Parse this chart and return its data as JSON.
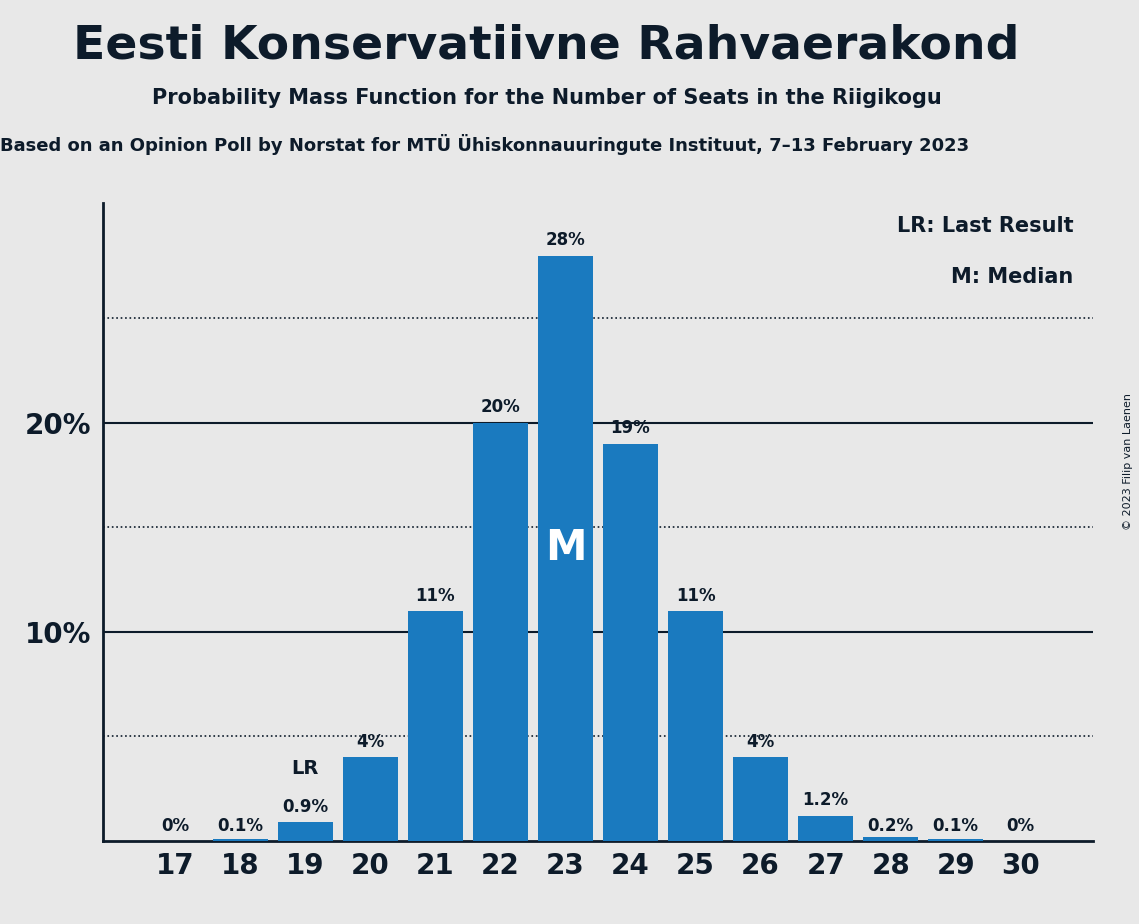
{
  "title": "Eesti Konservatiivne Rahvaerakond",
  "subtitle": "Probability Mass Function for the Number of Seats in the Riigikogu",
  "subsubtitle": "Based on an Opinion Poll by Norstat for MTÜ Ühiskonnauuringute Instituut, 7–13 February 2023",
  "copyright": "© 2023 Filip van Laenen",
  "seats": [
    17,
    18,
    19,
    20,
    21,
    22,
    23,
    24,
    25,
    26,
    27,
    28,
    29,
    30
  ],
  "probabilities": [
    0.0,
    0.001,
    0.009,
    0.04,
    0.11,
    0.2,
    0.28,
    0.19,
    0.11,
    0.04,
    0.012,
    0.002,
    0.001,
    0.0
  ],
  "bar_labels": [
    "0%",
    "0.1%",
    "0.9%",
    "4%",
    "11%",
    "20%",
    "28%",
    "19%",
    "11%",
    "4%",
    "1.2%",
    "0.2%",
    "0.1%",
    "0%"
  ],
  "bar_color": "#1a7abf",
  "bg_color": "#e8e8e8",
  "text_color": "#0d1b2a",
  "lr_seat": 19,
  "median_seat": 23,
  "lr_label": "LR",
  "median_label": "M",
  "legend_lr": "LR: Last Result",
  "legend_m": "M: Median",
  "yticks": [
    0.1,
    0.2
  ],
  "ytick_labels": [
    "10%",
    "20%"
  ],
  "dotted_lines": [
    0.05,
    0.15,
    0.25
  ],
  "ylim": [
    0,
    0.305
  ],
  "figsize": [
    11.39,
    9.24
  ]
}
